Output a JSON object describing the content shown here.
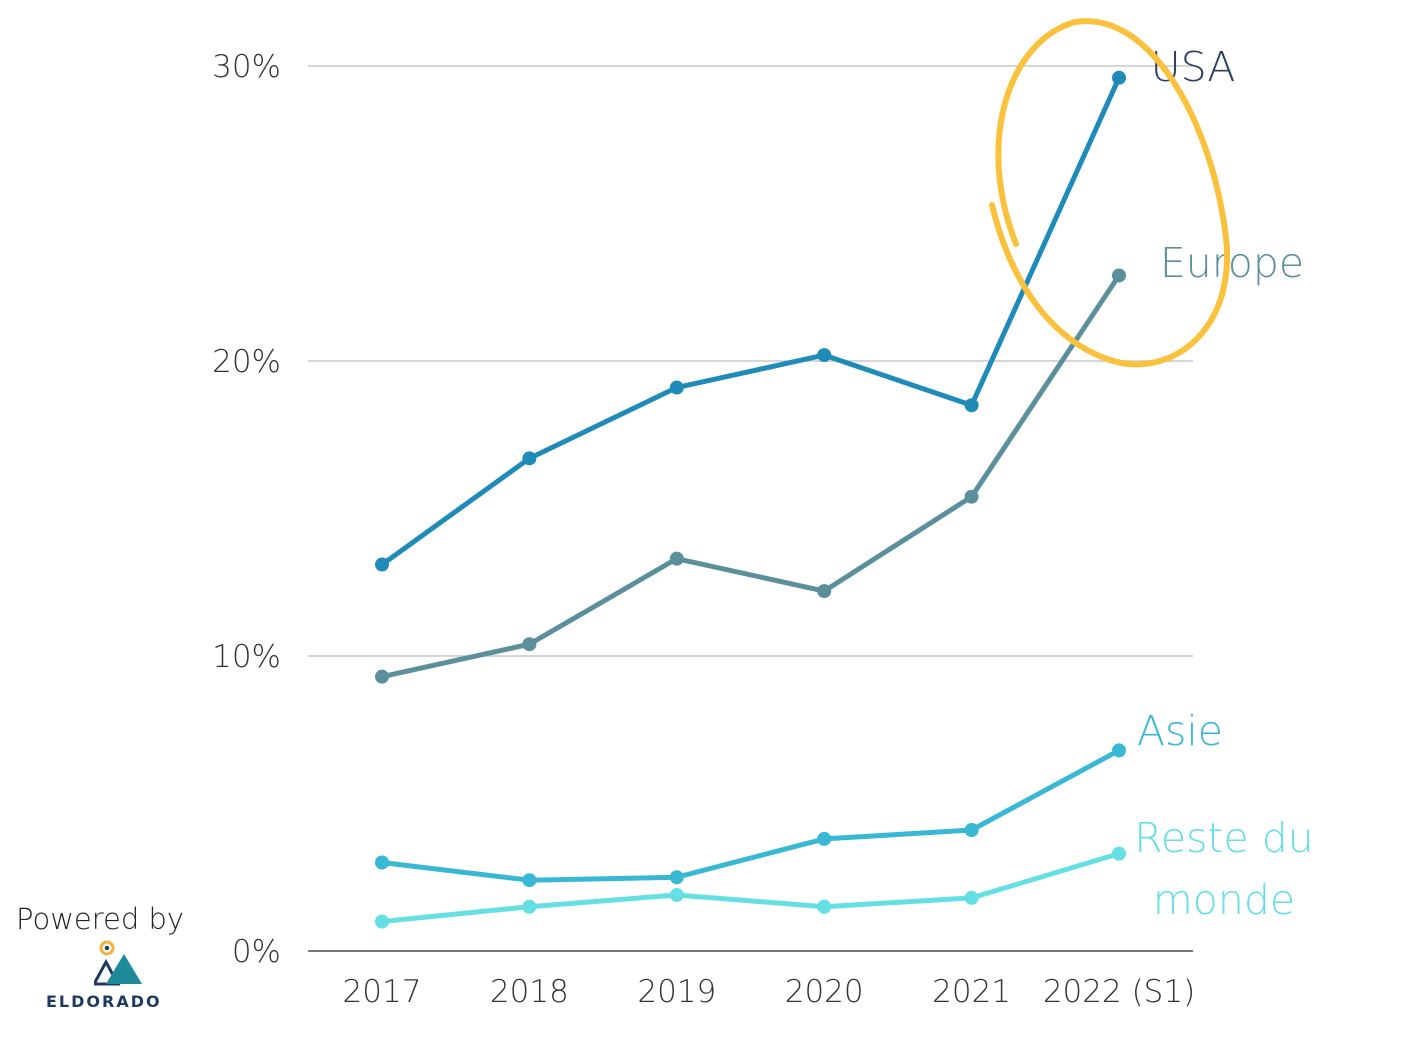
{
  "chart_data": {
    "type": "line",
    "categories": [
      "2017",
      "2018",
      "2019",
      "2020",
      "2021",
      "2022 (S1)"
    ],
    "y_tick_labels": [
      "0%",
      "10%",
      "20%",
      "30%"
    ],
    "y_tick_values": [
      0,
      10,
      20,
      30
    ],
    "ylim": [
      0,
      30
    ],
    "grid": true,
    "series": [
      {
        "name": "USA",
        "label_lines": [
          "USA"
        ],
        "color": "#1e8bb9",
        "label_color": "#2b3f5c",
        "values": [
          13.1,
          16.7,
          19.1,
          20.2,
          18.5,
          29.6
        ]
      },
      {
        "name": "Europe",
        "label_lines": [
          "Europe"
        ],
        "color": "#5b8f9b",
        "label_color": "#5b8f9b",
        "values": [
          9.3,
          10.4,
          13.3,
          12.2,
          15.4,
          22.9
        ]
      },
      {
        "name": "Asie",
        "label_lines": [
          "Asie"
        ],
        "color": "#38b8d4",
        "label_color": "#38b8d4",
        "values": [
          3.0,
          2.4,
          2.5,
          3.8,
          4.1,
          6.8
        ]
      },
      {
        "name": "Reste du monde",
        "label_lines": [
          "Reste du",
          "monde"
        ],
        "color": "#64e0e4",
        "label_color": "#64e0e4",
        "values": [
          1.0,
          1.5,
          1.9,
          1.5,
          1.8,
          3.3
        ]
      }
    ],
    "annotation": {
      "type": "highlight-circle",
      "target": "USA & Europe 2022 (S1)",
      "color": "#f9c13c"
    }
  },
  "brand": {
    "powered_by": "Powered by",
    "logo_name": "ELDORADO",
    "logo_icon": "mountain-sun-icon",
    "colors": {
      "sun": "#f0b23a",
      "mountain_back": "#1e3a5f",
      "mountain_front": "#1d8a9a"
    }
  }
}
